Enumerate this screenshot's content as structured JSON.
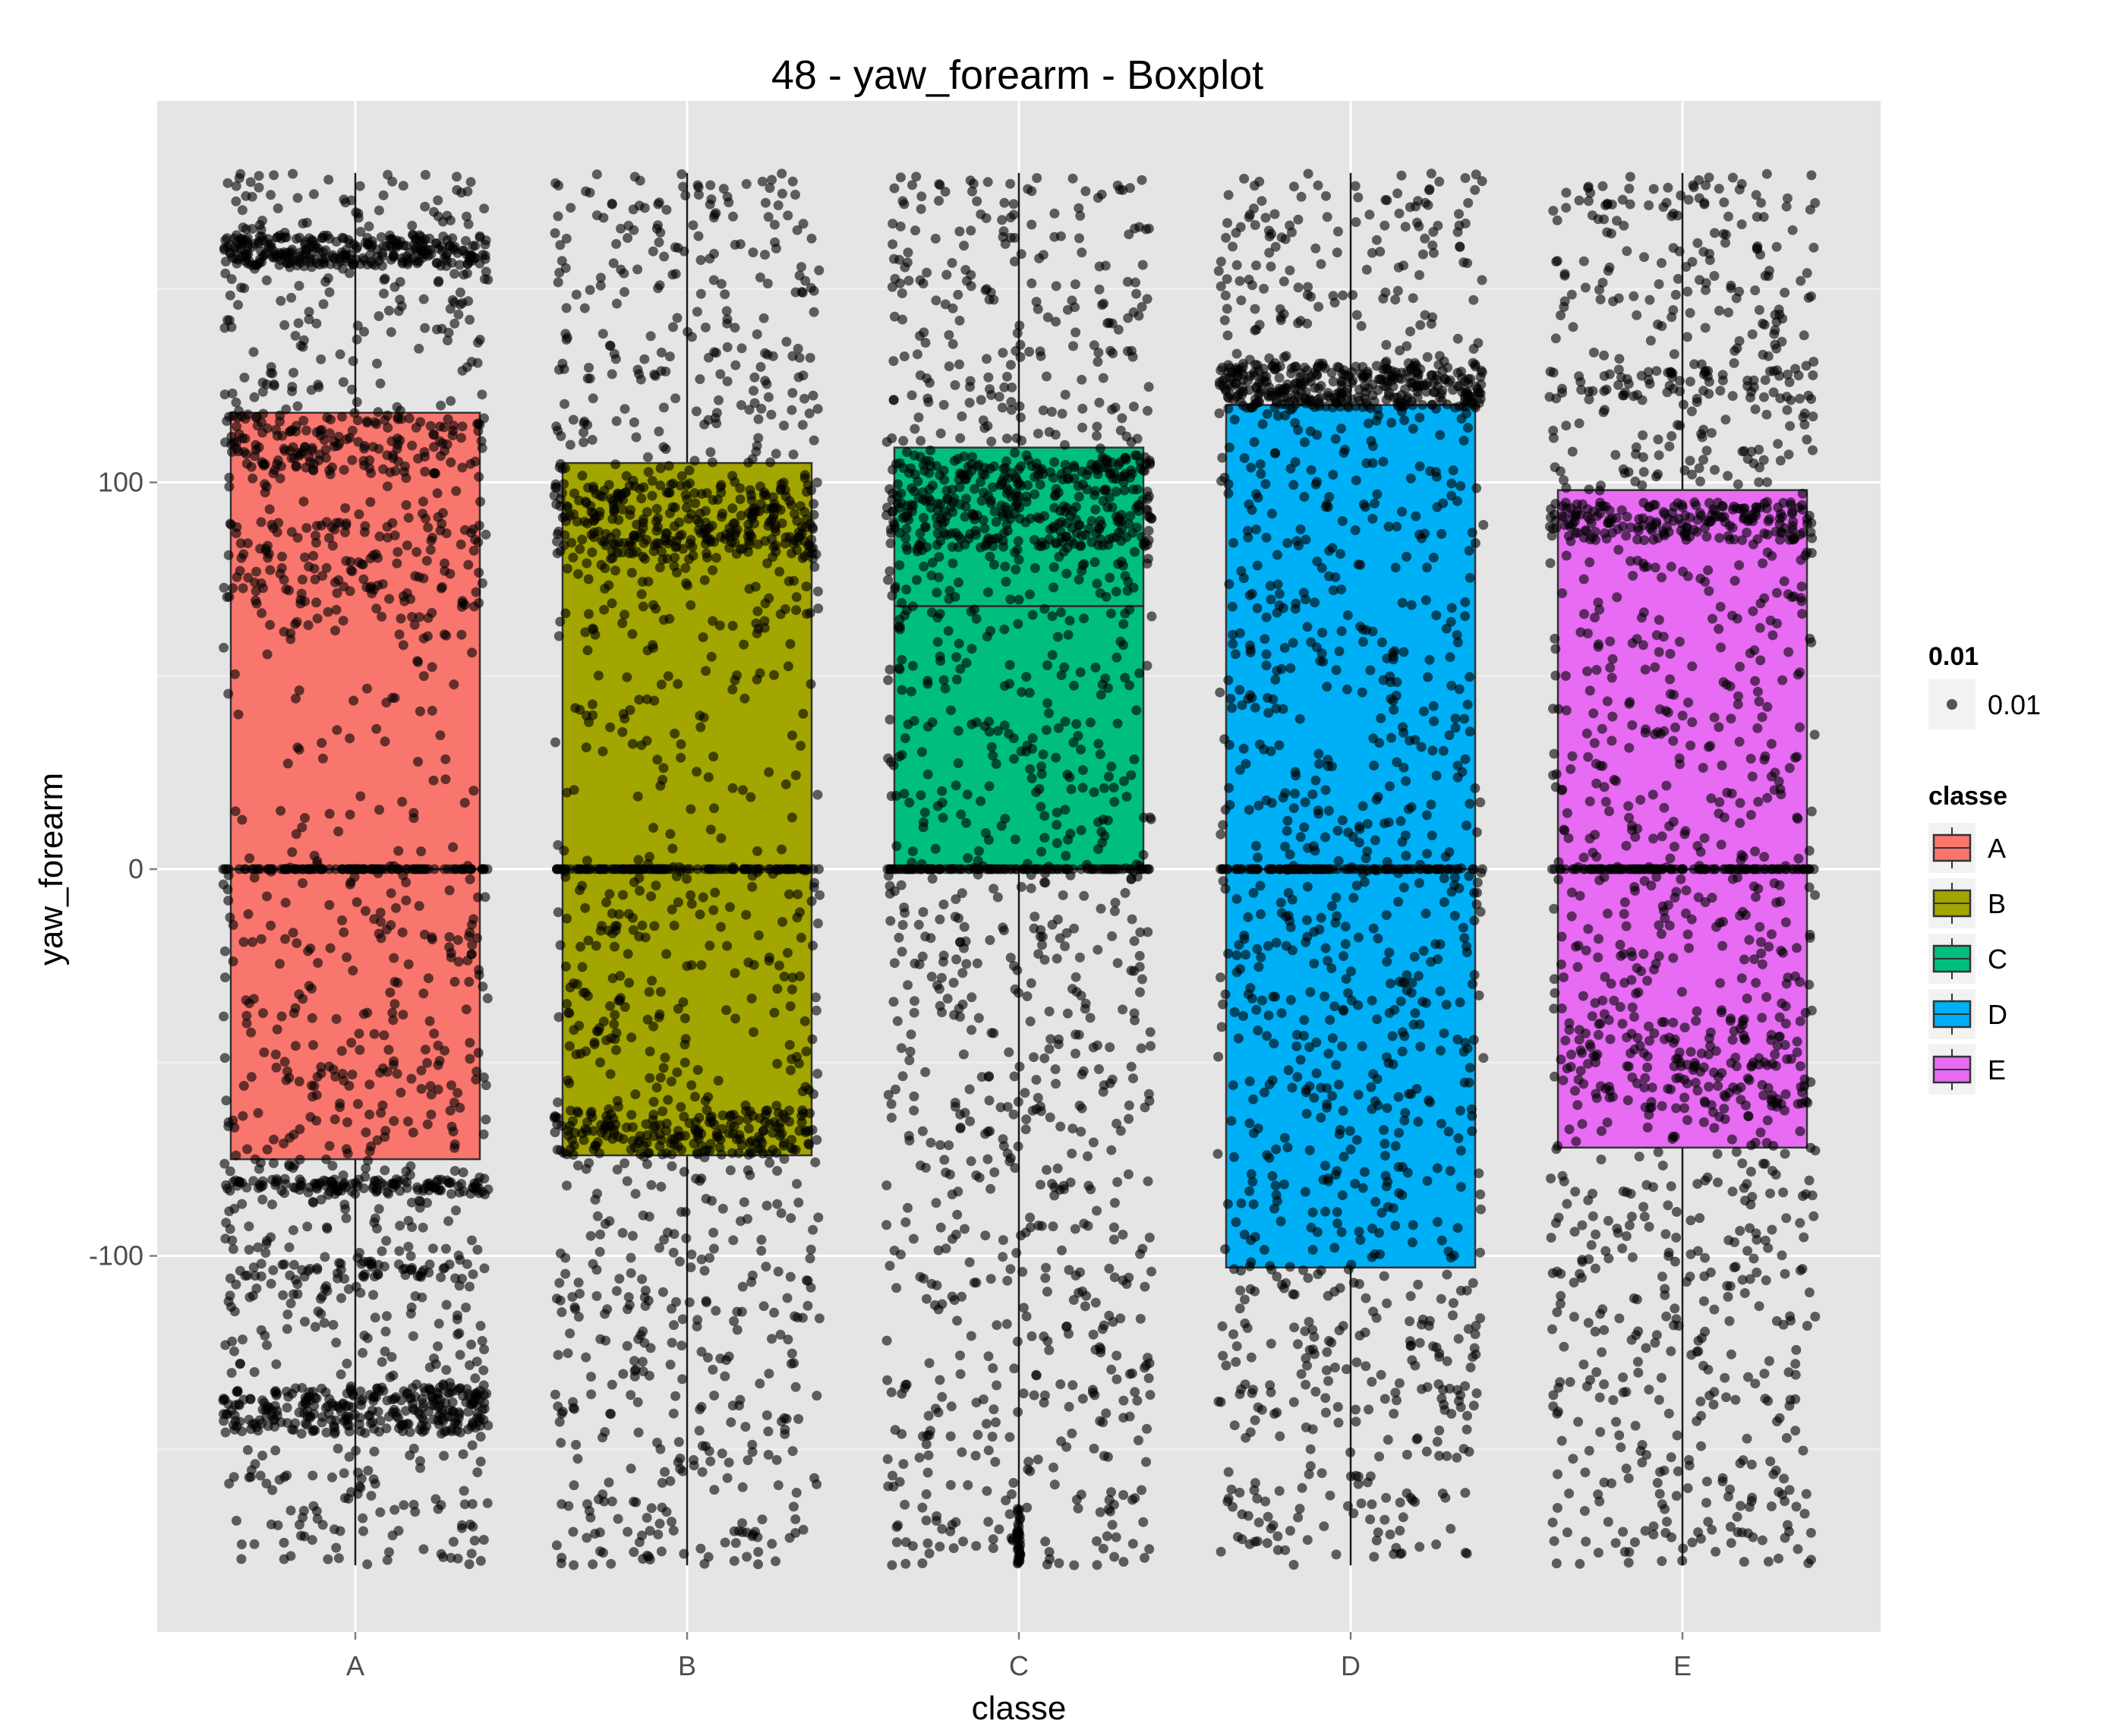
{
  "chart_data": {
    "type": "boxplot",
    "title": "48 - yaw_forearm - Boxplot",
    "xlabel": "classe",
    "ylabel": "yaw_forearm",
    "categories": [
      "A",
      "B",
      "C",
      "D",
      "E"
    ],
    "ylim": [
      -198,
      198
    ],
    "yticks": [
      -100,
      0,
      100
    ],
    "grid": true,
    "overlay": "jittered points (alpha 0.6, black)",
    "boxes": [
      {
        "category": "A",
        "color": "#F8766D",
        "min": -180,
        "q1": -75,
        "median": 0,
        "q3": 118,
        "max": 180
      },
      {
        "category": "B",
        "color": "#A3A500",
        "min": -180,
        "q1": -74,
        "median": 0,
        "q3": 105,
        "max": 180
      },
      {
        "category": "C",
        "color": "#00BF7D",
        "min": -180,
        "q1": 0,
        "median": 68,
        "q3": 109,
        "max": 180
      },
      {
        "category": "D",
        "color": "#00B0F6",
        "min": -180,
        "q1": -103,
        "median": 0,
        "q3": 120,
        "max": 180
      },
      {
        "category": "E",
        "color": "#E76BF3",
        "min": -180,
        "q1": -72,
        "median": 0,
        "q3": 98,
        "max": 180
      }
    ],
    "legend": {
      "placement": "right",
      "size_title": "0.01",
      "size_label": "0.01",
      "fill_title": "classe",
      "fill_labels": [
        "A",
        "B",
        "C",
        "D",
        "E"
      ]
    }
  }
}
